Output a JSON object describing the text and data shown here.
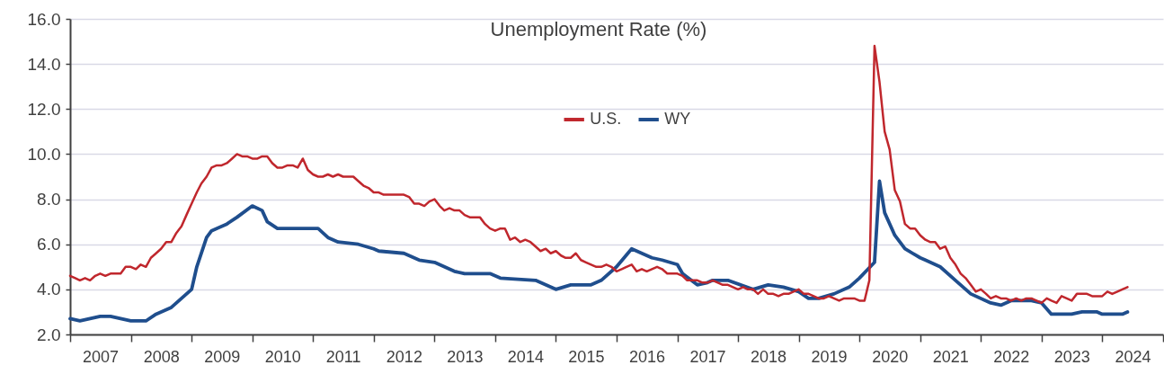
{
  "chart_data": {
    "type": "line",
    "title": "Unemployment Rate (%)",
    "xlim": [
      "2007-01",
      "2025-01"
    ],
    "xticks": [
      {
        "value": "2007-01",
        "label": null
      },
      {
        "value": "2007-07",
        "label": "2007"
      },
      {
        "value": "2008-01",
        "label": null
      },
      {
        "value": "2008-07",
        "label": "2008"
      },
      {
        "value": "2009-01",
        "label": null
      },
      {
        "value": "2009-07",
        "label": "2009"
      },
      {
        "value": "2010-01",
        "label": null
      },
      {
        "value": "2010-07",
        "label": "2010"
      },
      {
        "value": "2011-01",
        "label": null
      },
      {
        "value": "2011-07",
        "label": "2011"
      },
      {
        "value": "2012-01",
        "label": null
      },
      {
        "value": "2012-07",
        "label": "2012"
      },
      {
        "value": "2013-01",
        "label": null
      },
      {
        "value": "2013-07",
        "label": "2013"
      },
      {
        "value": "2014-01",
        "label": null
      },
      {
        "value": "2014-07",
        "label": "2014"
      },
      {
        "value": "2015-01",
        "label": null
      },
      {
        "value": "2015-07",
        "label": "2015"
      },
      {
        "value": "2016-01",
        "label": null
      },
      {
        "value": "2016-07",
        "label": "2016"
      },
      {
        "value": "2017-01",
        "label": null
      },
      {
        "value": "2017-07",
        "label": "2017"
      },
      {
        "value": "2018-01",
        "label": null
      },
      {
        "value": "2018-07",
        "label": "2018"
      },
      {
        "value": "2019-01",
        "label": null
      },
      {
        "value": "2019-07",
        "label": "2019"
      },
      {
        "value": "2020-01",
        "label": null
      },
      {
        "value": "2020-07",
        "label": "2020"
      },
      {
        "value": "2021-01",
        "label": null
      },
      {
        "value": "2021-07",
        "label": "2021"
      },
      {
        "value": "2022-01",
        "label": null
      },
      {
        "value": "2022-07",
        "label": "2022"
      },
      {
        "value": "2023-01",
        "label": null
      },
      {
        "value": "2023-07",
        "label": "2023"
      },
      {
        "value": "2024-01",
        "label": null
      },
      {
        "value": "2024-07",
        "label": "2024"
      },
      {
        "value": "2025-01",
        "label": null
      }
    ],
    "ylim": [
      2,
      16
    ],
    "yticks": [
      {
        "value": 2,
        "label": "2.0"
      },
      {
        "value": 4,
        "label": "4.0"
      },
      {
        "value": 6,
        "label": "6.0"
      },
      {
        "value": 8,
        "label": "8.0"
      },
      {
        "value": 10,
        "label": "10.0"
      },
      {
        "value": 12,
        "label": "12.0"
      },
      {
        "value": 14,
        "label": "14.0"
      },
      {
        "value": 16,
        "label": "16.0"
      }
    ],
    "grid": "y",
    "legend": "top",
    "marker": "none",
    "series": [
      {
        "name": "U.S.",
        "color": "#c0272d",
        "x": [
          "2007-01",
          "2007-02",
          "2007-03",
          "2007-04",
          "2007-05",
          "2007-06",
          "2007-07",
          "2007-08",
          "2007-09",
          "2007-10",
          "2007-11",
          "2007-12",
          "2008-01",
          "2008-02",
          "2008-03",
          "2008-04",
          "2008-05",
          "2008-06",
          "2008-07",
          "2008-08",
          "2008-09",
          "2008-10",
          "2008-11",
          "2008-12",
          "2009-01",
          "2009-02",
          "2009-03",
          "2009-04",
          "2009-05",
          "2009-06",
          "2009-07",
          "2009-08",
          "2009-09",
          "2009-10",
          "2009-11",
          "2009-12",
          "2010-01",
          "2010-02",
          "2010-03",
          "2010-04",
          "2010-05",
          "2010-06",
          "2010-07",
          "2010-08",
          "2010-09",
          "2010-10",
          "2010-11",
          "2010-12",
          "2011-01",
          "2011-02",
          "2011-03",
          "2011-04",
          "2011-05",
          "2011-06",
          "2011-07",
          "2011-08",
          "2011-09",
          "2011-10",
          "2011-11",
          "2011-12",
          "2012-01",
          "2012-02",
          "2012-03",
          "2012-04",
          "2012-05",
          "2012-06",
          "2012-07",
          "2012-08",
          "2012-09",
          "2012-10",
          "2012-11",
          "2012-12",
          "2013-01",
          "2013-02",
          "2013-03",
          "2013-04",
          "2013-05",
          "2013-06",
          "2013-07",
          "2013-08",
          "2013-09",
          "2013-10",
          "2013-11",
          "2013-12",
          "2014-01",
          "2014-02",
          "2014-03",
          "2014-04",
          "2014-05",
          "2014-06",
          "2014-07",
          "2014-08",
          "2014-09",
          "2014-10",
          "2014-11",
          "2014-12",
          "2015-01",
          "2015-02",
          "2015-03",
          "2015-04",
          "2015-05",
          "2015-06",
          "2015-07",
          "2015-08",
          "2015-09",
          "2015-10",
          "2015-11",
          "2015-12",
          "2016-01",
          "2016-02",
          "2016-03",
          "2016-04",
          "2016-05",
          "2016-06",
          "2016-07",
          "2016-08",
          "2016-09",
          "2016-10",
          "2016-11",
          "2016-12",
          "2017-01",
          "2017-02",
          "2017-03",
          "2017-04",
          "2017-05",
          "2017-06",
          "2017-07",
          "2017-08",
          "2017-09",
          "2017-10",
          "2017-11",
          "2017-12",
          "2018-01",
          "2018-02",
          "2018-03",
          "2018-04",
          "2018-05",
          "2018-06",
          "2018-07",
          "2018-08",
          "2018-09",
          "2018-10",
          "2018-11",
          "2018-12",
          "2019-01",
          "2019-02",
          "2019-03",
          "2019-04",
          "2019-05",
          "2019-06",
          "2019-07",
          "2019-08",
          "2019-09",
          "2019-10",
          "2019-11",
          "2019-12",
          "2020-01",
          "2020-02",
          "2020-03",
          "2020-04",
          "2020-05",
          "2020-06",
          "2020-07",
          "2020-08",
          "2020-09",
          "2020-10",
          "2020-11",
          "2020-12",
          "2021-01",
          "2021-02",
          "2021-03",
          "2021-04",
          "2021-05",
          "2021-06",
          "2021-07",
          "2021-08",
          "2021-09",
          "2021-10",
          "2021-11",
          "2021-12",
          "2022-01",
          "2022-02",
          "2022-03",
          "2022-04",
          "2022-05",
          "2022-06",
          "2022-07",
          "2022-08",
          "2022-09",
          "2022-10",
          "2022-11",
          "2022-12",
          "2023-01",
          "2023-02",
          "2023-03",
          "2023-04",
          "2023-05",
          "2023-06",
          "2023-07",
          "2023-08",
          "2023-09",
          "2023-10",
          "2023-11",
          "2023-12",
          "2024-01",
          "2024-02",
          "2024-03",
          "2024-04",
          "2024-05",
          "2024-06"
        ],
        "values": [
          4.6,
          4.5,
          4.4,
          4.5,
          4.4,
          4.6,
          4.7,
          4.6,
          4.7,
          4.7,
          4.7,
          5.0,
          5.0,
          4.9,
          5.1,
          5.0,
          5.4,
          5.6,
          5.8,
          6.1,
          6.1,
          6.5,
          6.8,
          7.3,
          7.8,
          8.3,
          8.7,
          9.0,
          9.4,
          9.5,
          9.5,
          9.6,
          9.8,
          10.0,
          9.9,
          9.9,
          9.8,
          9.8,
          9.9,
          9.9,
          9.6,
          9.4,
          9.4,
          9.5,
          9.5,
          9.4,
          9.8,
          9.3,
          9.1,
          9.0,
          9.0,
          9.1,
          9.0,
          9.1,
          9.0,
          9.0,
          9.0,
          8.8,
          8.6,
          8.5,
          8.3,
          8.3,
          8.2,
          8.2,
          8.2,
          8.2,
          8.2,
          8.1,
          7.8,
          7.8,
          7.7,
          7.9,
          8.0,
          7.7,
          7.5,
          7.6,
          7.5,
          7.5,
          7.3,
          7.2,
          7.2,
          7.2,
          6.9,
          6.7,
          6.6,
          6.7,
          6.7,
          6.2,
          6.3,
          6.1,
          6.2,
          6.1,
          5.9,
          5.7,
          5.8,
          5.6,
          5.7,
          5.5,
          5.4,
          5.4,
          5.6,
          5.3,
          5.2,
          5.1,
          5.0,
          5.0,
          5.1,
          5.0,
          4.8,
          4.9,
          5.0,
          5.1,
          4.8,
          4.9,
          4.8,
          4.9,
          5.0,
          4.9,
          4.7,
          4.7,
          4.7,
          4.6,
          4.4,
          4.4,
          4.4,
          4.3,
          4.3,
          4.4,
          4.3,
          4.2,
          4.2,
          4.1,
          4.0,
          4.1,
          4.0,
          4.0,
          3.8,
          4.0,
          3.8,
          3.8,
          3.7,
          3.8,
          3.8,
          3.9,
          4.0,
          3.8,
          3.8,
          3.7,
          3.6,
          3.6,
          3.7,
          3.6,
          3.5,
          3.6,
          3.6,
          3.6,
          3.5,
          3.5,
          4.4,
          14.8,
          13.2,
          11.0,
          10.2,
          8.4,
          7.9,
          6.9,
          6.7,
          6.7,
          6.4,
          6.2,
          6.1,
          6.1,
          5.8,
          5.9,
          5.4,
          5.1,
          4.7,
          4.5,
          4.2,
          3.9,
          4.0,
          3.8,
          3.6,
          3.7,
          3.6,
          3.6,
          3.5,
          3.6,
          3.5,
          3.6,
          3.6,
          3.5,
          3.4,
          3.6,
          3.5,
          3.4,
          3.7,
          3.6,
          3.5,
          3.8,
          3.8,
          3.8,
          3.7,
          3.7,
          3.7,
          3.9,
          3.8,
          3.9,
          4.0,
          4.1
        ]
      },
      {
        "name": "WY",
        "color": "#1f4e8d",
        "x": [
          "2007-01",
          "2007-03",
          "2007-05",
          "2007-07",
          "2007-09",
          "2007-11",
          "2008-01",
          "2008-04",
          "2008-06",
          "2008-09",
          "2008-11",
          "2009-01",
          "2009-02",
          "2009-04",
          "2009-05",
          "2009-08",
          "2009-10",
          "2010-01",
          "2010-03",
          "2010-04",
          "2010-06",
          "2011-02",
          "2011-04",
          "2011-06",
          "2011-10",
          "2012-01",
          "2012-02",
          "2012-07",
          "2012-10",
          "2013-01",
          "2013-05",
          "2013-07",
          "2013-12",
          "2014-02",
          "2014-09",
          "2015-01",
          "2015-04",
          "2015-08",
          "2015-10",
          "2016-01",
          "2016-04",
          "2016-06",
          "2016-08",
          "2016-10",
          "2017-01",
          "2017-02",
          "2017-05",
          "2017-07",
          "2017-08",
          "2017-11",
          "2018-04",
          "2018-07",
          "2018-10",
          "2019-01",
          "2019-03",
          "2019-05",
          "2019-08",
          "2019-11",
          "2020-01",
          "2020-04",
          "2020-05",
          "2020-06",
          "2020-08",
          "2020-10",
          "2021-01",
          "2021-02",
          "2021-05",
          "2021-08",
          "2021-11",
          "2022-03",
          "2022-05",
          "2022-07",
          "2022-11",
          "2023-01",
          "2023-03",
          "2023-07",
          "2023-09",
          "2023-12",
          "2024-01",
          "2024-05",
          "2024-06"
        ],
        "values": [
          2.7,
          2.6,
          2.7,
          2.8,
          2.8,
          2.7,
          2.6,
          2.6,
          2.9,
          3.2,
          3.6,
          4.0,
          5.0,
          6.3,
          6.6,
          6.9,
          7.2,
          7.7,
          7.5,
          7.0,
          6.7,
          6.7,
          6.3,
          6.1,
          6.0,
          5.8,
          5.7,
          5.6,
          5.3,
          5.2,
          4.8,
          4.7,
          4.7,
          4.5,
          4.4,
          4.0,
          4.2,
          4.2,
          4.4,
          5.0,
          5.8,
          5.6,
          5.4,
          5.3,
          5.1,
          4.7,
          4.2,
          4.3,
          4.4,
          4.4,
          4.0,
          4.2,
          4.1,
          3.9,
          3.6,
          3.6,
          3.8,
          4.1,
          4.5,
          5.2,
          8.8,
          7.4,
          6.4,
          5.8,
          5.4,
          5.3,
          5.0,
          4.4,
          3.8,
          3.4,
          3.3,
          3.5,
          3.5,
          3.4,
          2.9,
          2.9,
          3.0,
          3.0,
          2.9,
          2.9,
          3.0
        ]
      }
    ]
  }
}
